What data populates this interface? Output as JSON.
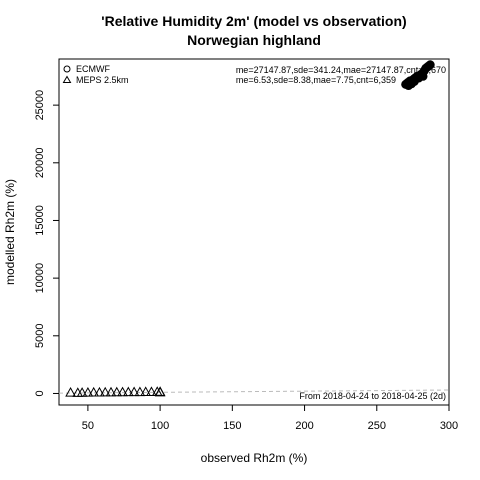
{
  "chart_data": {
    "type": "scatter",
    "title": "'Relative Humidity 2m' (model vs observation)",
    "subtitle": "Norwegian highland",
    "xlabel": "observed Rh2m (%)",
    "ylabel": "modelled Rh2m (%)",
    "xlim": [
      30,
      300
    ],
    "ylim": [
      -1000,
      29000
    ],
    "xticks": [
      50,
      100,
      150,
      200,
      250,
      300
    ],
    "yticks": [
      0,
      5000,
      10000,
      15000,
      20000,
      25000
    ],
    "legend_position": "top-left",
    "series": [
      {
        "name": "ECMWF",
        "marker": "circle",
        "stats": "me=27147.87,sde=341.24,mae=27147.87,cnt=6,670",
        "points": [
          [
            270,
            26800
          ],
          [
            271,
            26900
          ],
          [
            272,
            26700
          ],
          [
            272,
            27000
          ],
          [
            273,
            27100
          ],
          [
            274,
            26850
          ],
          [
            275,
            27200
          ],
          [
            276,
            27300
          ],
          [
            276,
            27050
          ],
          [
            277,
            27400
          ],
          [
            278,
            27500
          ],
          [
            279,
            27350
          ],
          [
            280,
            27600
          ],
          [
            281,
            27700
          ],
          [
            282,
            27500
          ],
          [
            283,
            28000
          ],
          [
            284,
            28200
          ],
          [
            285,
            28300
          ],
          [
            286,
            28400
          ],
          [
            287,
            28500
          ]
        ]
      },
      {
        "name": "MEPS 2.5km",
        "marker": "triangle",
        "stats": "me=6.53,sde=8.38,mae=7.75,cnt=6,359",
        "points": [
          [
            38,
            80
          ],
          [
            43,
            60
          ],
          [
            46,
            70
          ],
          [
            50,
            80
          ],
          [
            54,
            90
          ],
          [
            58,
            95
          ],
          [
            62,
            100
          ],
          [
            66,
            105
          ],
          [
            70,
            110
          ],
          [
            74,
            115
          ],
          [
            78,
            120
          ],
          [
            82,
            125
          ],
          [
            86,
            130
          ],
          [
            90,
            135
          ],
          [
            94,
            140
          ],
          [
            98,
            145
          ],
          [
            100,
            150
          ],
          [
            100,
            100
          ]
        ]
      }
    ],
    "reference_line": [
      [
        0,
        0
      ],
      [
        300,
        300
      ]
    ],
    "footnote": "From 2018-04-24 to 2018-04-25 (2d)"
  }
}
